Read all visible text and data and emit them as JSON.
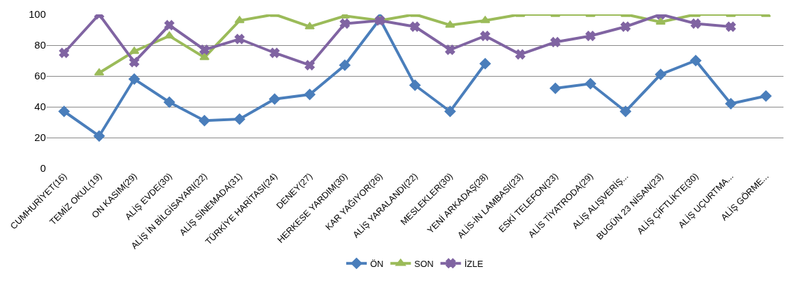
{
  "chart_data": {
    "type": "line",
    "categories": [
      "CUMHURİYET(16)",
      "TEMİZ OKUL(19)",
      "ON KASIM(29)",
      "ALİŞ EVDE(30)",
      "ALİŞ İN BİLGİSAYARI(22)",
      "ALİŞ SİNEMADA(31)",
      "TÜRKİYE HARİTASI(24)",
      "DENEY(27)",
      "HERKESE YARDIM(30)",
      "KAR YAĞIYOR(26)",
      "ALİŞ YARALANDI(22)",
      "MESLEKLER(30)",
      "YENİ ARKADAŞ(28)",
      "ALİS-İN LAMBASI(23)",
      "ESKİ TELEFON(23)",
      "ALİS TİYATRODA(29)",
      "ALİŞ ALIŞVERİŞ...",
      "BUGÜN 23 NİSAN(23)",
      "ALİŞ ÇİFTLİKTE(30)",
      "ALİŞ UÇURTMA...",
      "ALİŞ GÖRME..."
    ],
    "series": [
      {
        "name": "ÖN",
        "color": "#4a7ebb",
        "marker": "diamond",
        "values": [
          37,
          21,
          58,
          43,
          31,
          32,
          45,
          48,
          67,
          97,
          54,
          37,
          68,
          null,
          52,
          55,
          37,
          61,
          70,
          42,
          47
        ]
      },
      {
        "name": "SON",
        "color": "#9bbb59",
        "marker": "triangle",
        "values": [
          null,
          62,
          76,
          86,
          72,
          96,
          100,
          92,
          99,
          96,
          100,
          93,
          96,
          100,
          100,
          100,
          100,
          95,
          100,
          100,
          100
        ]
      },
      {
        "name": "İZLE",
        "color": "#8064a2",
        "marker": "cross",
        "values": [
          75,
          100,
          69,
          93,
          77,
          84,
          75,
          67,
          94,
          96,
          92,
          77,
          86,
          74,
          82,
          86,
          92,
          100,
          94,
          92,
          null
        ]
      }
    ],
    "ylim": [
      0,
      100
    ],
    "yticks": [
      0,
      20,
      40,
      60,
      80,
      100
    ],
    "grid": "y",
    "legend": "bottom"
  }
}
